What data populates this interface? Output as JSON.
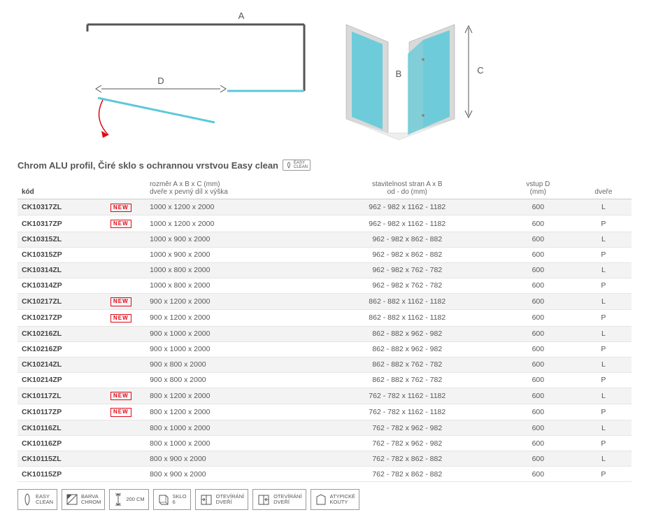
{
  "diagram": {
    "label_a": "A",
    "label_b": "B",
    "label_c": "C",
    "label_d": "D"
  },
  "title": "Chrom ALU profil, Čiré sklo s ochrannou vrstvou Easy clean",
  "easy_clean_label": "EASY\nCLEAN",
  "headers": {
    "code": "kód",
    "size_l1": "rozměr A x B x C (mm)",
    "size_l2": "dveře x pevný díl x výška",
    "adjust_l1": "stavitelnost stran A x B",
    "adjust_l2": "od - do (mm)",
    "d_l1": "vstup D",
    "d_l2": "(mm)",
    "door": "dveře"
  },
  "new_label": "NEW",
  "rows": [
    {
      "code": "CK10317ZL",
      "new": true,
      "size": "1000 x 1200 x 2000",
      "adjust": "962 - 982 x 1162 - 1182",
      "d": "600",
      "door": "L"
    },
    {
      "code": "CK10317ZP",
      "new": true,
      "size": "1000 x 1200 x 2000",
      "adjust": "962 - 982 x 1162 - 1182",
      "d": "600",
      "door": "P"
    },
    {
      "code": "CK10315ZL",
      "new": false,
      "size": "1000 x 900 x 2000",
      "adjust": "962 - 982 x 862 - 882",
      "d": "600",
      "door": "L"
    },
    {
      "code": "CK10315ZP",
      "new": false,
      "size": "1000 x 900 x 2000",
      "adjust": "962 - 982 x 862 - 882",
      "d": "600",
      "door": "P"
    },
    {
      "code": "CK10314ZL",
      "new": false,
      "size": "1000 x 800 x 2000",
      "adjust": "962 - 982 x 762 - 782",
      "d": "600",
      "door": "L"
    },
    {
      "code": "CK10314ZP",
      "new": false,
      "size": "1000 x 800 x 2000",
      "adjust": "962 - 982 x 762 - 782",
      "d": "600",
      "door": "P"
    },
    {
      "code": "CK10217ZL",
      "new": true,
      "size": "900 x 1200 x 2000",
      "adjust": "862 - 882 x 1162 - 1182",
      "d": "600",
      "door": "L"
    },
    {
      "code": "CK10217ZP",
      "new": true,
      "size": "900 x 1200 x 2000",
      "adjust": "862 - 882 x 1162 - 1182",
      "d": "600",
      "door": "P"
    },
    {
      "code": "CK10216ZL",
      "new": false,
      "size": "900 x 1000 x 2000",
      "adjust": "862 - 882 x 962 - 982",
      "d": "600",
      "door": "L"
    },
    {
      "code": "CK10216ZP",
      "new": false,
      "size": "900 x 1000 x 2000",
      "adjust": "862 - 882 x 962 - 982",
      "d": "600",
      "door": "P"
    },
    {
      "code": "CK10214ZL",
      "new": false,
      "size": "900 x 800 x 2000",
      "adjust": "862 - 882 x 762 - 782",
      "d": "600",
      "door": "L"
    },
    {
      "code": "CK10214ZP",
      "new": false,
      "size": "900 x 800 x 2000",
      "adjust": "862 - 882 x 762 - 782",
      "d": "600",
      "door": "P"
    },
    {
      "code": "CK10117ZL",
      "new": true,
      "size": "800 x 1200 x 2000",
      "adjust": "762 - 782 x 1162 - 1182",
      "d": "600",
      "door": "L"
    },
    {
      "code": "CK10117ZP",
      "new": true,
      "size": "800 x 1200 x 2000",
      "adjust": "762 - 782 x 1162 - 1182",
      "d": "600",
      "door": "P"
    },
    {
      "code": "CK10116ZL",
      "new": false,
      "size": "800 x 1000 x 2000",
      "adjust": "762 - 782 x 962 - 982",
      "d": "600",
      "door": "L"
    },
    {
      "code": "CK10116ZP",
      "new": false,
      "size": "800 x 1000 x 2000",
      "adjust": "762 - 782 x 962 - 982",
      "d": "600",
      "door": "P"
    },
    {
      "code": "CK10115ZL",
      "new": false,
      "size": "800 x 900 x 2000",
      "adjust": "762 - 782 x 862 - 882",
      "d": "600",
      "door": "L"
    },
    {
      "code": "CK10115ZP",
      "new": false,
      "size": "800 x 900 x 2000",
      "adjust": "762 - 782 x 862 - 882",
      "d": "600",
      "door": "P"
    }
  ],
  "features": [
    {
      "id": "easy-clean",
      "l1": "EASY",
      "l2": "CLEAN"
    },
    {
      "id": "barva-chrom",
      "l1": "BARVA",
      "l2": "CHROM"
    },
    {
      "id": "200cm",
      "l1": "200 CM",
      "l2": ""
    },
    {
      "id": "sklo-6",
      "l1": "SKLO",
      "l2": "6"
    },
    {
      "id": "otevirani-dveri-1",
      "l1": "OTEVÍRÁNÍ",
      "l2": "DVEŘÍ"
    },
    {
      "id": "otevirani-dveri-2",
      "l1": "OTEVÍRÁNÍ",
      "l2": "DVEŘÍ"
    },
    {
      "id": "atypicke-kouty",
      "l1": "ATYPICKÉ",
      "l2": "KOUTY"
    }
  ],
  "colors": {
    "glass": "#5bc9d9",
    "wall": "#d9d9d9",
    "line": "#555555",
    "arrow_red": "#e30613",
    "alt_row": "#f3f3f3",
    "border": "#e5e5e5"
  }
}
